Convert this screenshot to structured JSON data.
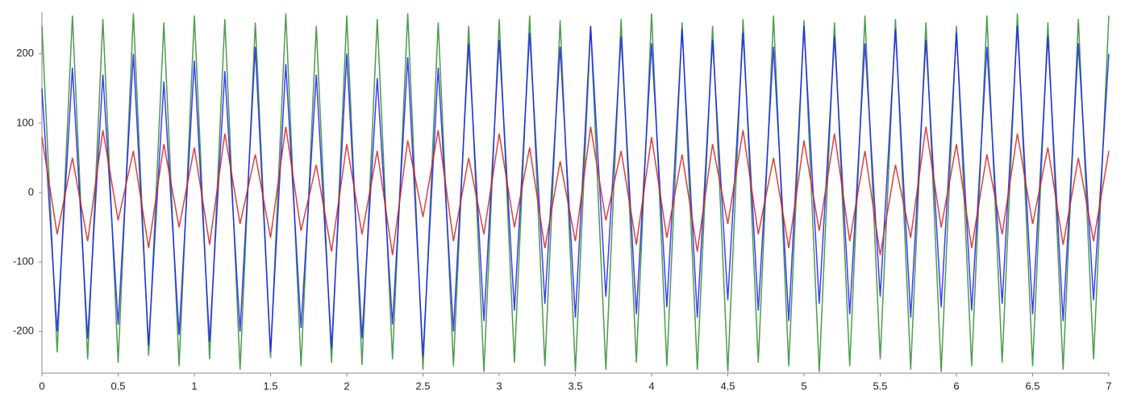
{
  "chart_data": {
    "type": "line",
    "x": [
      0,
      0.1,
      0.2,
      0.3,
      0.4,
      0.5,
      0.6,
      0.7,
      0.8,
      0.9,
      1,
      1.1,
      1.2,
      1.3,
      1.4,
      1.5,
      1.6,
      1.7,
      1.8,
      1.9,
      2,
      2.1,
      2.2,
      2.3,
      2.4,
      2.5,
      2.6,
      2.7,
      2.8,
      2.9,
      3,
      3.1,
      3.2,
      3.3,
      3.4,
      3.5,
      3.6,
      3.7,
      3.8,
      3.9,
      4,
      4.1,
      4.2,
      4.3,
      4.4,
      4.5,
      4.6,
      4.7,
      4.8,
      4.9,
      5,
      5.1,
      5.2,
      5.3,
      5.4,
      5.5,
      5.6,
      5.7,
      5.8,
      5.9,
      6,
      6.1,
      6.2,
      6.3,
      6.4,
      6.5,
      6.6,
      6.7,
      6.8,
      6.9,
      7
    ],
    "series": [
      {
        "color": "#2e8b2e",
        "values": [
          240,
          -230,
          255,
          -240,
          250,
          -245,
          258,
          -235,
          245,
          -250,
          255,
          -240,
          250,
          -255,
          245,
          -238,
          258,
          -250,
          240,
          -245,
          255,
          -248,
          250,
          -240,
          258,
          -255,
          245,
          -250,
          240,
          -258,
          250,
          -245,
          255,
          -250,
          248,
          -258,
          240,
          -255,
          250,
          -245,
          258,
          -250,
          245,
          -255,
          240,
          -258,
          250,
          -245,
          255,
          -250,
          248,
          -258,
          245,
          -250,
          255,
          -240,
          250,
          -255,
          245,
          -258,
          240,
          -250,
          255,
          -245,
          258,
          -250,
          245,
          -255,
          250,
          -240,
          255
        ]
      },
      {
        "color": "#1a1aff",
        "values": [
          150,
          -200,
          180,
          -210,
          170,
          -190,
          200,
          -220,
          160,
          -205,
          190,
          -215,
          175,
          -200,
          210,
          -230,
          185,
          -195,
          170,
          -225,
          200,
          -210,
          165,
          -190,
          195,
          -235,
          180,
          -200,
          215,
          -185,
          220,
          -170,
          230,
          -160,
          210,
          -180,
          240,
          -150,
          225,
          -175,
          215,
          -165,
          235,
          -180,
          220,
          -155,
          230,
          -170,
          210,
          -185,
          240,
          -160,
          225,
          -175,
          215,
          -150,
          235,
          -180,
          220,
          -165,
          230,
          -170,
          210,
          -160,
          240,
          -175,
          225,
          -185,
          215,
          -155,
          200
        ]
      },
      {
        "color": "#d42020",
        "values": [
          80,
          -60,
          50,
          -70,
          90,
          -40,
          60,
          -80,
          70,
          -50,
          65,
          -75,
          85,
          -45,
          55,
          -65,
          95,
          -55,
          40,
          -85,
          70,
          -60,
          60,
          -90,
          75,
          -35,
          90,
          -70,
          50,
          -60,
          85,
          -50,
          65,
          -80,
          45,
          -70,
          95,
          -40,
          60,
          -75,
          80,
          -65,
          55,
          -85,
          70,
          -45,
          90,
          -60,
          50,
          -80,
          75,
          -55,
          85,
          -70,
          60,
          -90,
          40,
          -65,
          95,
          -50,
          70,
          -80,
          55,
          -60,
          85,
          -45,
          65,
          -75,
          50,
          -70,
          60
        ]
      }
    ],
    "xlim": [
      0,
      7
    ],
    "xticks": [
      0,
      0.5,
      1,
      1.5,
      2,
      2.5,
      3,
      3.5,
      4,
      4.5,
      5,
      5.5,
      6,
      6.5,
      7
    ],
    "ylim": [
      -260,
      260
    ],
    "yticks": [
      -200,
      -100,
      0,
      100,
      200
    ]
  }
}
